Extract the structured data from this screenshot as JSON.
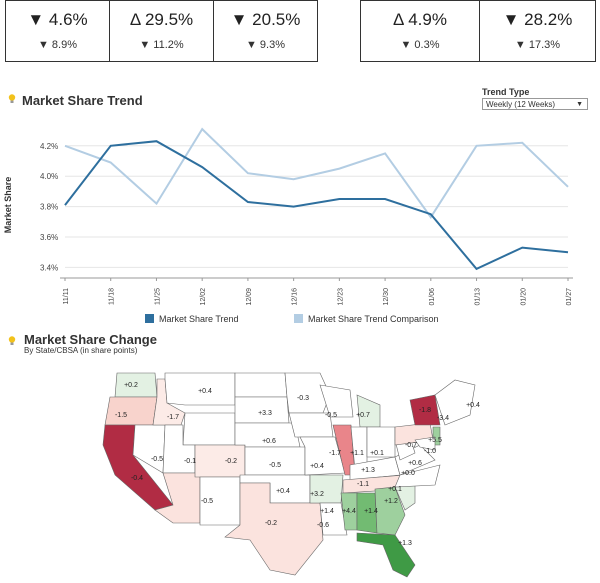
{
  "kpis_left": [
    {
      "main": "▼ 4.6%",
      "sub": "▼ 8.9%"
    },
    {
      "main": "Δ 29.5%",
      "sub": "▼ 11.2%"
    },
    {
      "main": "▼ 20.5%",
      "sub": "▼ 9.3%"
    }
  ],
  "kpis_right": [
    {
      "main": "Δ 4.9%",
      "sub": "▼ 0.3%"
    },
    {
      "main": "▼ 28.2%",
      "sub": "▼ 17.3%"
    }
  ],
  "trend": {
    "title": "Market Share Trend",
    "trend_type_label": "Trend Type",
    "trend_type_value": "Weekly (12 Weeks)"
  },
  "chart_data": {
    "type": "line",
    "title": "Market Share Trend",
    "ylabel": "Market Share",
    "ylim": [
      3.35,
      4.35
    ],
    "yticks": [
      "3.4%",
      "3.6%",
      "3.8%",
      "4.0%",
      "4.2%"
    ],
    "ytick_values": [
      3.4,
      3.6,
      3.8,
      4.0,
      4.2
    ],
    "categories": [
      "11/11",
      "11/18",
      "11/25",
      "12/02",
      "12/09",
      "12/16",
      "12/23",
      "12/30",
      "01/06",
      "01/13",
      "01/20",
      "01/27"
    ],
    "series": [
      {
        "name": "Market Share Trend",
        "color": "#2e6f9e",
        "values": [
          3.81,
          4.2,
          4.23,
          4.06,
          3.83,
          3.8,
          3.85,
          3.85,
          3.75,
          3.39,
          3.53,
          3.5
        ]
      },
      {
        "name": "Market Share Trend Comparison",
        "color": "#b3cde3",
        "values": [
          4.2,
          4.09,
          3.82,
          4.31,
          4.02,
          3.98,
          4.05,
          4.15,
          3.73,
          4.2,
          4.22,
          3.93
        ]
      }
    ],
    "legend": "bottom"
  },
  "map": {
    "title": "Market Share Change",
    "subtitle": "By State/CBSA (in share points)",
    "labels": [
      "+0.2",
      "+0.4",
      "-1.5",
      "-1.7",
      "+3.3",
      "-0.3",
      "-0.5",
      "+0.7",
      "+0.4",
      "-3.4",
      "-1.8",
      "-0.4",
      "-0.5",
      "-0.1",
      "-0.2",
      "+0.6",
      "-0.5",
      "+0.4",
      "-1.7",
      "+1.1",
      "+0.1",
      "-0.7",
      "+5.5",
      "-1.0",
      "+1.3",
      "+0.6",
      "+0.0",
      "-0.5",
      "+0.4",
      "+3.2",
      "-1.1",
      "+0.1",
      "+1.2",
      "-0.2",
      "+1.4",
      "+4.4",
      "+1.4",
      "-0.6",
      "+1.3"
    ]
  }
}
